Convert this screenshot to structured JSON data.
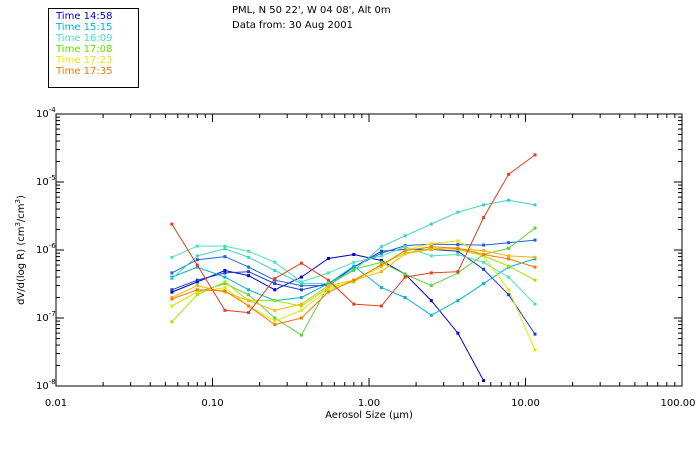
{
  "header": {
    "line1": "PML, N 50 22', W 04 08', Alt 0m",
    "line2": "Data from: 30 Aug 2001"
  },
  "chart_data": {
    "type": "line",
    "x_scale": "log",
    "y_scale": "log",
    "xlim": [
      0.01,
      100
    ],
    "ylim": [
      1e-08,
      0.0001
    ],
    "xlabel": "Aerosol Size (μm)",
    "ylabel_prefix": "dV/d(log R) (cm",
    "ylabel_sup1": "3",
    "ylabel_mid": "/cm",
    "ylabel_sup2": "3",
    "ylabel_suffix": ")",
    "x_ticks": [
      {
        "value": 0.01,
        "label": "0.01"
      },
      {
        "value": 0.1,
        "label": "0.10"
      },
      {
        "value": 1,
        "label": "1.00"
      },
      {
        "value": 10,
        "label": "10.00"
      },
      {
        "value": 100,
        "label": "100.00"
      }
    ],
    "y_ticks": [
      {
        "exp": -8,
        "base": "10",
        "label": "-8"
      },
      {
        "exp": -7,
        "base": "10",
        "label": "-7"
      },
      {
        "exp": -6,
        "base": "10",
        "label": "-6"
      },
      {
        "exp": -5,
        "base": "10",
        "label": "-5"
      },
      {
        "exp": -4,
        "base": "10",
        "label": "-4"
      }
    ],
    "x": [
      0.055,
      0.08,
      0.12,
      0.17,
      0.25,
      0.37,
      0.55,
      0.8,
      1.2,
      1.7,
      2.5,
      3.7,
      5.4,
      7.8,
      11.5
    ],
    "series": [
      {
        "name": "Time 14:58",
        "color": "#0000c8",
        "values": [
          2.4e-07,
          3.4e-07,
          5e-07,
          4.2e-07,
          2.6e-07,
          4e-07,
          7.5e-07,
          8.6e-07,
          7e-07,
          4.4e-07,
          1.8e-07,
          6e-08,
          1.2e-08,
          null,
          null
        ]
      },
      {
        "name": "Time 14:58",
        "color": "#1a3cc8",
        "values": [
          2.6e-07,
          3.6e-07,
          4.6e-07,
          4.8e-07,
          3.2e-07,
          2.6e-07,
          3.2e-07,
          5.6e-07,
          9.6e-07,
          1.02e-06,
          1.02e-06,
          9.6e-07,
          5.2e-07,
          2.2e-07,
          5.8e-08
        ]
      },
      {
        "name": "Time 15:15",
        "color": "#1e64e0",
        "values": [
          4.6e-07,
          7.2e-07,
          8e-07,
          5.6e-07,
          3.6e-07,
          3e-07,
          3e-07,
          5.6e-07,
          9e-07,
          1.16e-06,
          1.22e-06,
          1.2e-06,
          1.18e-06,
          1.28e-06,
          1.4e-06
        ]
      },
      {
        "name": "Time 15:15",
        "color": "#00b4dc",
        "values": [
          4e-07,
          5.6e-07,
          4e-07,
          2.6e-07,
          1.8e-07,
          2e-07,
          3.2e-07,
          5.8e-07,
          2.8e-07,
          2e-07,
          1.1e-07,
          1.8e-07,
          3.2e-07,
          5.6e-07,
          7.4e-07
        ]
      },
      {
        "name": "Time 16:09",
        "color": "#3cd2c8",
        "values": [
          3.8e-07,
          8.2e-07,
          1.04e-06,
          7.8e-07,
          5e-07,
          3.2e-07,
          3.2e-07,
          5e-07,
          1.12e-06,
          1.62e-06,
          2.4e-06,
          3.6e-06,
          4.6e-06,
          5.4e-06,
          4.6e-06
        ]
      },
      {
        "name": "Time 16:09",
        "color": "#46e6b4",
        "values": [
          7.8e-07,
          1.14e-06,
          1.14e-06,
          9.6e-07,
          6.6e-07,
          3.4e-07,
          4.6e-07,
          6.6e-07,
          8.2e-07,
          1.12e-06,
          8.2e-07,
          8.6e-07,
          6.6e-07,
          4e-07,
          1.6e-07
        ]
      },
      {
        "name": "Time 17:08",
        "color": "#5ad23c",
        "values": [
          1.5e-07,
          2.4e-07,
          3.2e-07,
          2.2e-07,
          1e-07,
          5.6e-08,
          3e-07,
          5.2e-07,
          6.6e-07,
          4.4e-07,
          3e-07,
          4.6e-07,
          8.6e-07,
          1.06e-06,
          2.1e-06
        ]
      },
      {
        "name": "Time 17:08",
        "color": "#a0e600",
        "values": [
          8.8e-08,
          2.2e-07,
          3.4e-07,
          1.8e-07,
          1.8e-07,
          1.5e-07,
          2.8e-07,
          3.4e-07,
          6.2e-07,
          9e-07,
          1.06e-06,
          1.02e-06,
          8.2e-07,
          5.8e-07,
          3.6e-07
        ]
      },
      {
        "name": "Time 17:23",
        "color": "#e6e600",
        "values": [
          1.5e-07,
          2.4e-07,
          2.8e-07,
          1.5e-07,
          9e-08,
          1.3e-07,
          2.6e-07,
          3.6e-07,
          5.6e-07,
          1e-06,
          1.24e-06,
          1.36e-06,
          8.2e-07,
          2.6e-07,
          3.4e-08
        ]
      },
      {
        "name": "Time 17:23",
        "color": "#ffb400",
        "values": [
          2e-07,
          3e-07,
          2.4e-07,
          1.8e-07,
          1.3e-07,
          1.6e-07,
          3e-07,
          3.6e-07,
          4.8e-07,
          8.8e-07,
          1.02e-06,
          1.04e-06,
          9.8e-07,
          8.2e-07,
          7.8e-07
        ]
      },
      {
        "name": "Time 17:35",
        "color": "#ff7800",
        "values": [
          1.9e-07,
          2.6e-07,
          2.5e-07,
          1.5e-07,
          8e-08,
          1e-07,
          2.4e-07,
          3.6e-07,
          6e-07,
          9.8e-07,
          1.12e-06,
          1.06e-06,
          8.6e-07,
          7.4e-07,
          5.6e-07
        ]
      },
      {
        "name": "Time 17:35",
        "color": "#e63c1e",
        "values": [
          2.4e-06,
          6e-07,
          1.3e-07,
          1.2e-07,
          3.8e-07,
          6.4e-07,
          3.6e-07,
          1.6e-07,
          1.5e-07,
          4e-07,
          4.6e-07,
          4.8e-07,
          3e-06,
          1.3e-05,
          2.5e-05
        ]
      }
    ],
    "legend": [
      {
        "label": "Time 14:58",
        "color": "#0000c8"
      },
      {
        "label": "Time 15:15",
        "color": "#00b4dc"
      },
      {
        "label": "Time 16:09",
        "color": "#46dcc8"
      },
      {
        "label": "Time 17:08",
        "color": "#64dc00"
      },
      {
        "label": "Time 17:23",
        "color": "#f0e600"
      },
      {
        "label": "Time 17:35",
        "color": "#f07800"
      }
    ],
    "legend_position": "top-left, outside plot"
  }
}
